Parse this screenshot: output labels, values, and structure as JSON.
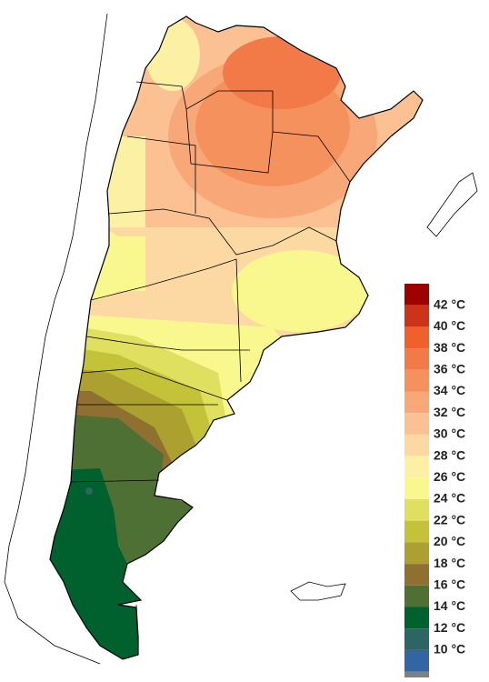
{
  "legend": {
    "colors": [
      "#9e0000",
      "#cc3318",
      "#f0602c",
      "#f27a48",
      "#f5915c",
      "#f8a878",
      "#fbc192",
      "#fcd9a2",
      "#fcf0a4",
      "#f8f88e",
      "#e0e060",
      "#c4c238",
      "#aca030",
      "#907030",
      "#4e7034",
      "#00602e",
      "#2e6464",
      "#3364a4",
      "#808080"
    ],
    "labels": [
      "42 °C",
      "40 °C",
      "38 °C",
      "36 °C",
      "34 °C",
      "32 °C",
      "30 °C",
      "28 °C",
      "26 °C",
      "24 °C",
      "22 °C",
      "20 °C",
      "18 °C",
      "16 °C",
      "14 °C",
      "12 °C",
      "10 °C"
    ]
  }
}
